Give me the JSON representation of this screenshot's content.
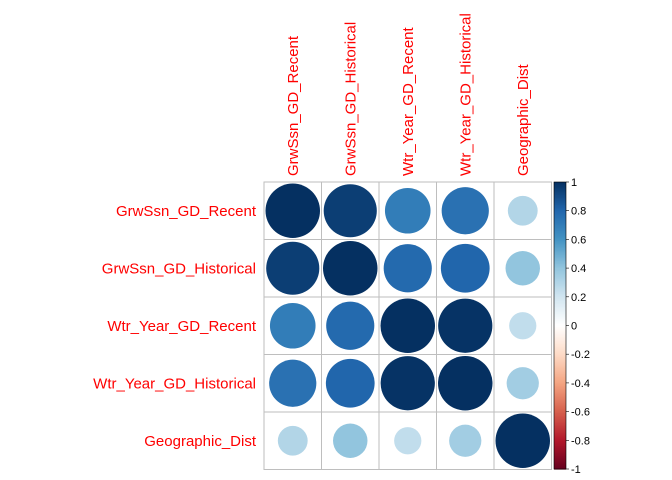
{
  "chart_data": {
    "type": "heatmap",
    "variables": [
      "GrwSsn_GD_Recent",
      "GrwSsn_GD_Historical",
      "Wtr_Year_GD_Recent",
      "Wtr_Year_GD_Historical",
      "Geographic_Dist"
    ],
    "matrix": [
      [
        1.0,
        0.95,
        0.7,
        0.75,
        0.3
      ],
      [
        0.95,
        1.0,
        0.78,
        0.8,
        0.4
      ],
      [
        0.7,
        0.78,
        1.0,
        0.99,
        0.25
      ],
      [
        0.75,
        0.8,
        0.99,
        1.0,
        0.35
      ],
      [
        0.3,
        0.4,
        0.25,
        0.35,
        1.0
      ]
    ],
    "colorbar": {
      "ticks": [
        "1",
        "0.8",
        "0.6",
        "0.4",
        "0.2",
        "0",
        "-0.2",
        "-0.4",
        "-0.6",
        "-0.8",
        "-1"
      ],
      "range": [
        -1,
        1
      ]
    },
    "colors": {
      "label": "#ff0000",
      "grid": "#bebebe",
      "scale": [
        "#67001f",
        "#b2182b",
        "#d6604d",
        "#f4a582",
        "#fddbc7",
        "#ffffff",
        "#d1e5f0",
        "#92c5de",
        "#4393c3",
        "#2166ac",
        "#053061"
      ]
    }
  }
}
